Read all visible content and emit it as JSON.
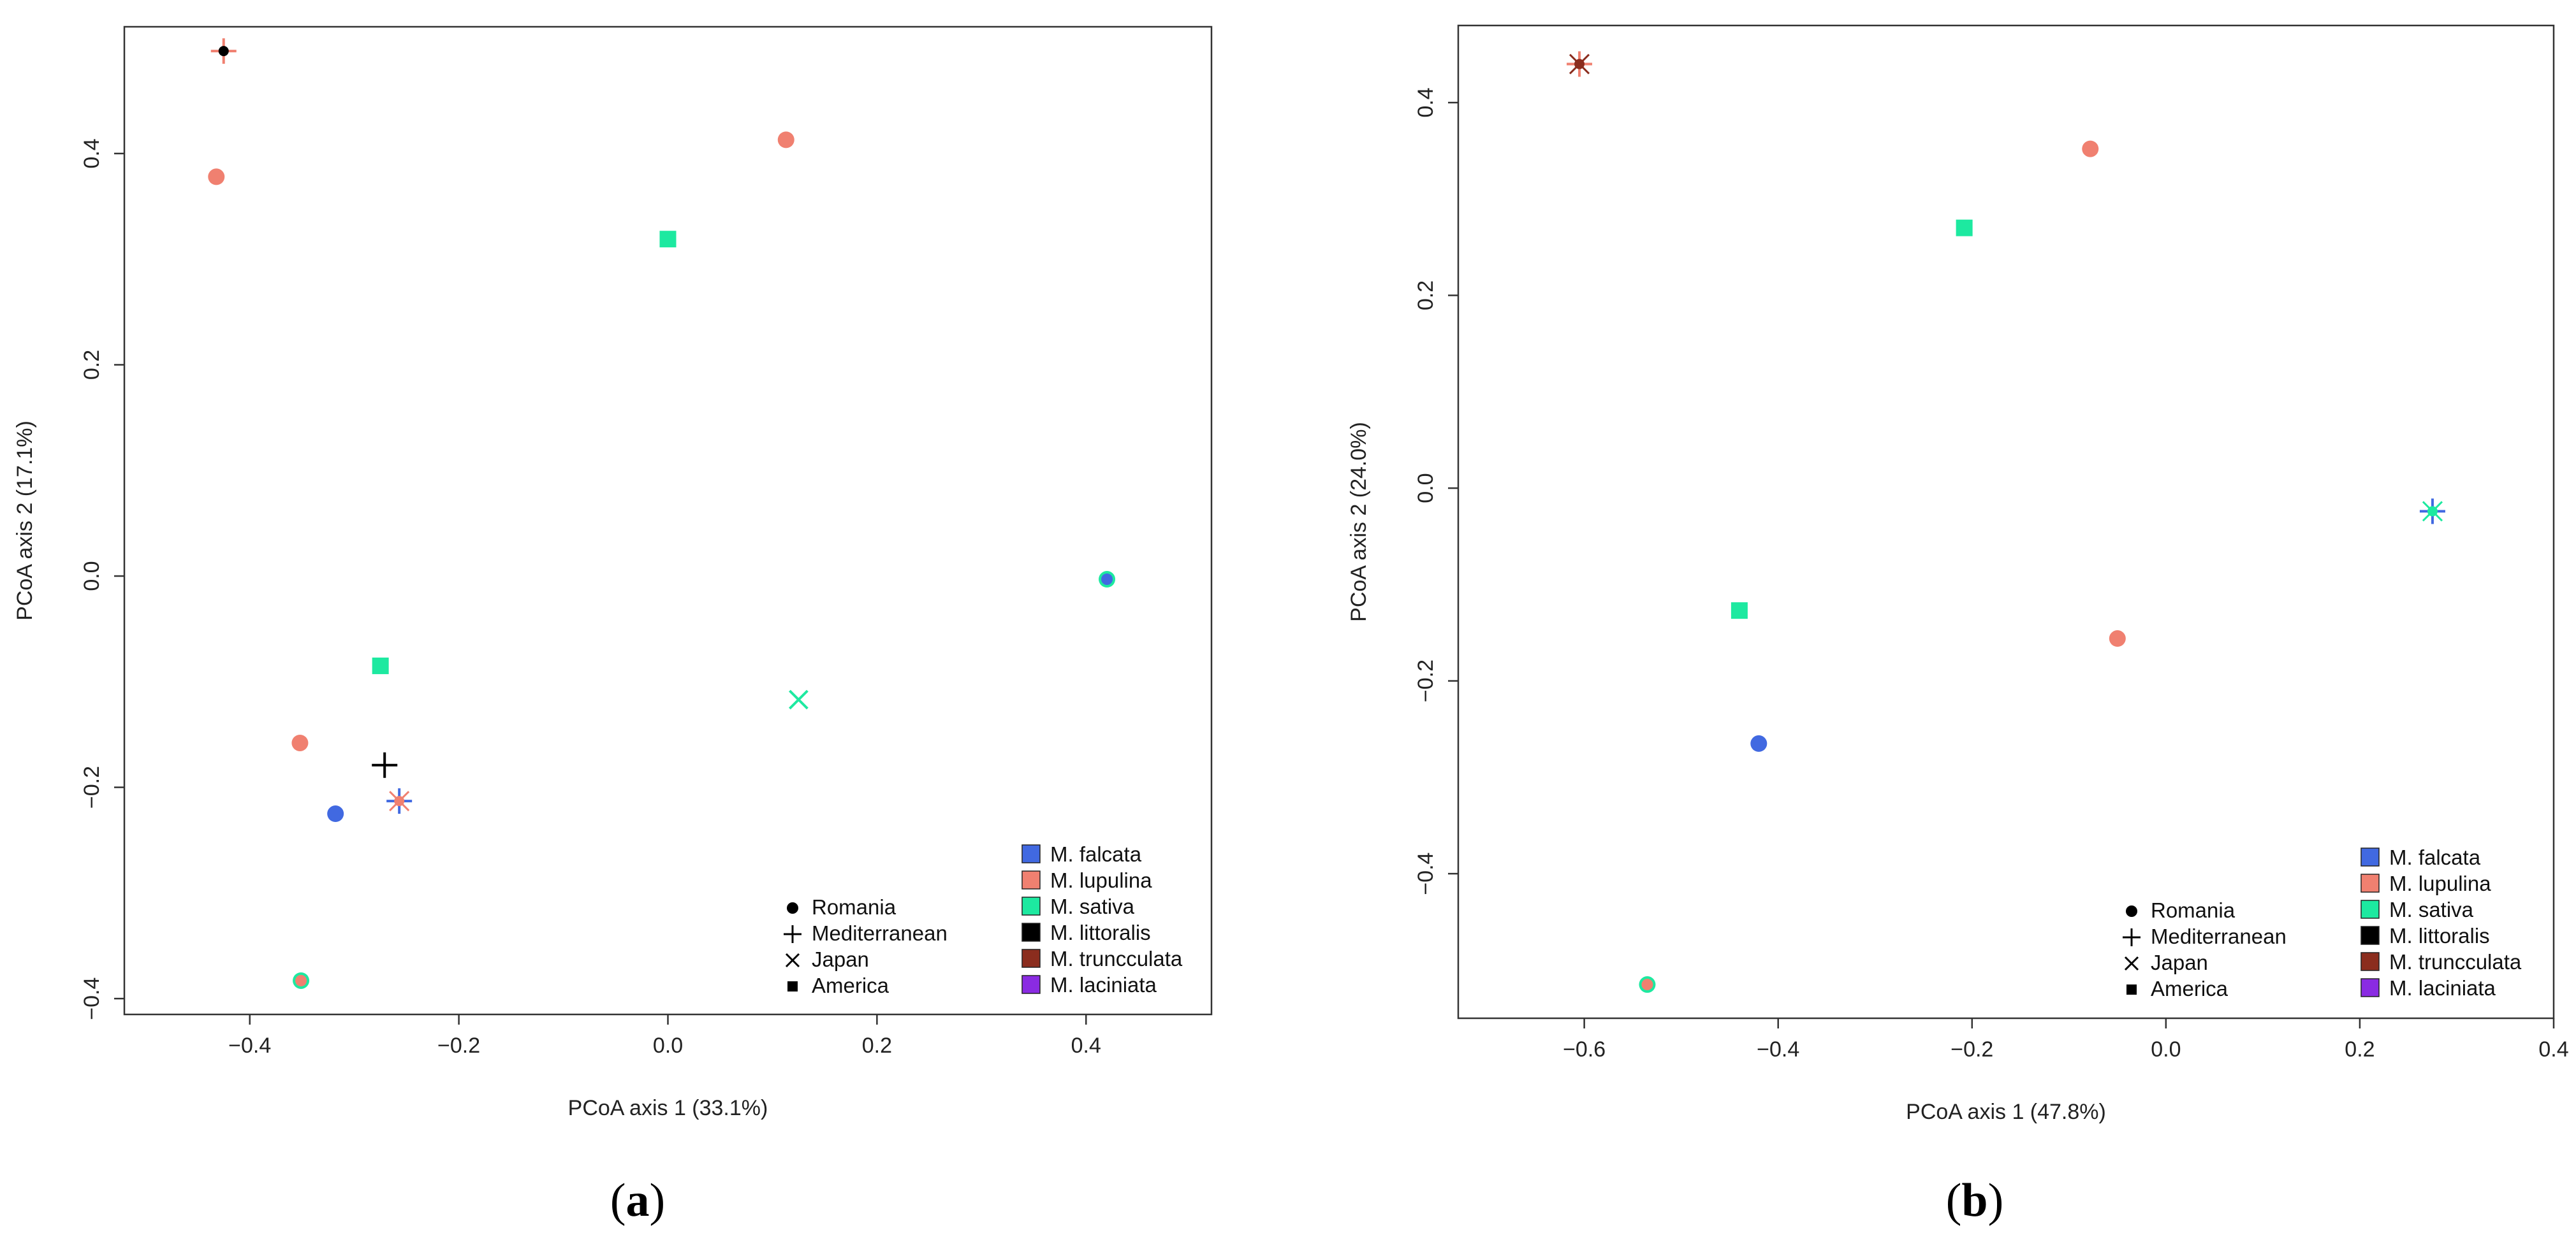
{
  "chart_data": [
    {
      "panel": "a",
      "panel_label_open": "(",
      "panel_label_letter": "a",
      "panel_label_close": ")",
      "type": "scatter",
      "xlabel": "PCoA axis 1 (33.1%)",
      "ylabel": "PCoA axis 2 (17.1%)",
      "xlim": [
        -0.52,
        0.52
      ],
      "ylim": [
        -0.415,
        0.52
      ],
      "xticks": [
        -0.4,
        -0.2,
        0.0,
        0.2,
        0.4
      ],
      "xtick_labels": [
        "−0.4",
        "−0.2",
        "0.0",
        "0.2",
        "0.4"
      ],
      "yticks": [
        -0.4,
        -0.2,
        0.0,
        0.2,
        0.4
      ],
      "ytick_labels": [
        "−0.4",
        "−0.2",
        "0.0",
        "0.2",
        "0.4"
      ],
      "points": [
        {
          "x": -0.425,
          "y": 0.497,
          "species": "M. lupulina",
          "region": "Mediterranean",
          "overlay": "M. trunculata"
        },
        {
          "x": -0.432,
          "y": 0.378,
          "species": "M. lupulina",
          "region": "Romania"
        },
        {
          "x": 0.113,
          "y": 0.413,
          "species": "M. lupulina",
          "region": "Romania"
        },
        {
          "x": 0.0,
          "y": 0.319,
          "species": "M. sativa",
          "region": "America"
        },
        {
          "x": 0.42,
          "y": -0.003,
          "species": "M. sativa",
          "region": "Romania",
          "overlay": "M. falcata"
        },
        {
          "x": -0.275,
          "y": -0.085,
          "species": "M. sativa",
          "region": "America"
        },
        {
          "x": 0.125,
          "y": -0.117,
          "species": "M. sativa",
          "region": "Japan"
        },
        {
          "x": -0.352,
          "y": -0.158,
          "species": "M. lupulina",
          "region": "Romania"
        },
        {
          "x": -0.271,
          "y": -0.179,
          "species": "M. littoralis",
          "region": "Mediterranean"
        },
        {
          "x": -0.257,
          "y": -0.213,
          "species": "M. falcata",
          "region": "Mediterranean",
          "overlay": "M. lupulina"
        },
        {
          "x": -0.318,
          "y": -0.225,
          "species": "M. falcata",
          "region": "Romania"
        },
        {
          "x": -0.351,
          "y": -0.383,
          "species": "M. sativa",
          "region": "Romania",
          "overlay": "M. lupulina"
        }
      ],
      "shape_legend": [
        "Romania",
        "Mediterranean",
        "Japan",
        "America"
      ],
      "color_legend": [
        "M. falcata",
        "M. lupulina",
        "M. sativa",
        "M. littoralis",
        "M. truncculata",
        "M. laciniata"
      ]
    },
    {
      "panel": "b",
      "panel_label_open": "(",
      "panel_label_letter": "b",
      "panel_label_close": ")",
      "type": "scatter",
      "xlabel": "PCoA axis 1 (47.8%)",
      "ylabel": "PCoA axis 2 (24.0%)",
      "xlim": [
        -0.73,
        0.4
      ],
      "ylim": [
        -0.55,
        0.48
      ],
      "xticks": [
        -0.6,
        -0.4,
        -0.2,
        0.0,
        0.2,
        0.4
      ],
      "xtick_labels": [
        "−0.6",
        "−0.4",
        "−0.2",
        "0.0",
        "0.2",
        "0.4"
      ],
      "yticks": [
        -0.4,
        -0.2,
        0.0,
        0.2,
        0.4
      ],
      "ytick_labels": [
        "−0.4",
        "−0.2",
        "0.0",
        "0.2",
        "0.4"
      ],
      "points": [
        {
          "x": -0.605,
          "y": 0.44,
          "species": "M. lupulina",
          "region": "Mediterranean",
          "overlay": "M. truncculata"
        },
        {
          "x": -0.078,
          "y": 0.352,
          "species": "M. lupulina",
          "region": "Romania"
        },
        {
          "x": -0.208,
          "y": 0.27,
          "species": "M. sativa",
          "region": "America"
        },
        {
          "x": 0.275,
          "y": -0.024,
          "species": "M. falcata",
          "region": "Mediterranean",
          "overlay": "M. sativa"
        },
        {
          "x": -0.44,
          "y": -0.127,
          "species": "M. sativa",
          "region": "America"
        },
        {
          "x": -0.05,
          "y": -0.156,
          "species": "M. lupulina",
          "region": "Romania"
        },
        {
          "x": -0.42,
          "y": -0.265,
          "species": "M. falcata",
          "region": "Romania"
        },
        {
          "x": -0.535,
          "y": -0.515,
          "species": "M. sativa",
          "region": "Romania",
          "overlay": "M. lupulina"
        }
      ],
      "shape_legend": [
        "Romania",
        "Mediterranean",
        "Japan",
        "America"
      ],
      "color_legend": [
        "M. falcata",
        "M. lupulina",
        "M. sativa",
        "M. littoralis",
        "M. truncculata",
        "M. laciniata"
      ]
    }
  ],
  "species_colors": {
    "M. falcata": "#4169e1",
    "M. lupulina": "#f08070",
    "M. sativa": "#1de9a0",
    "M. littoralis": "#000000",
    "M. truncculata": "#8b2d1e",
    "M. laciniata": "#8a2be2"
  },
  "region_icons": {
    "Romania": "filled-circle",
    "Mediterranean": "plus",
    "Japan": "cross",
    "America": "filled-square"
  }
}
